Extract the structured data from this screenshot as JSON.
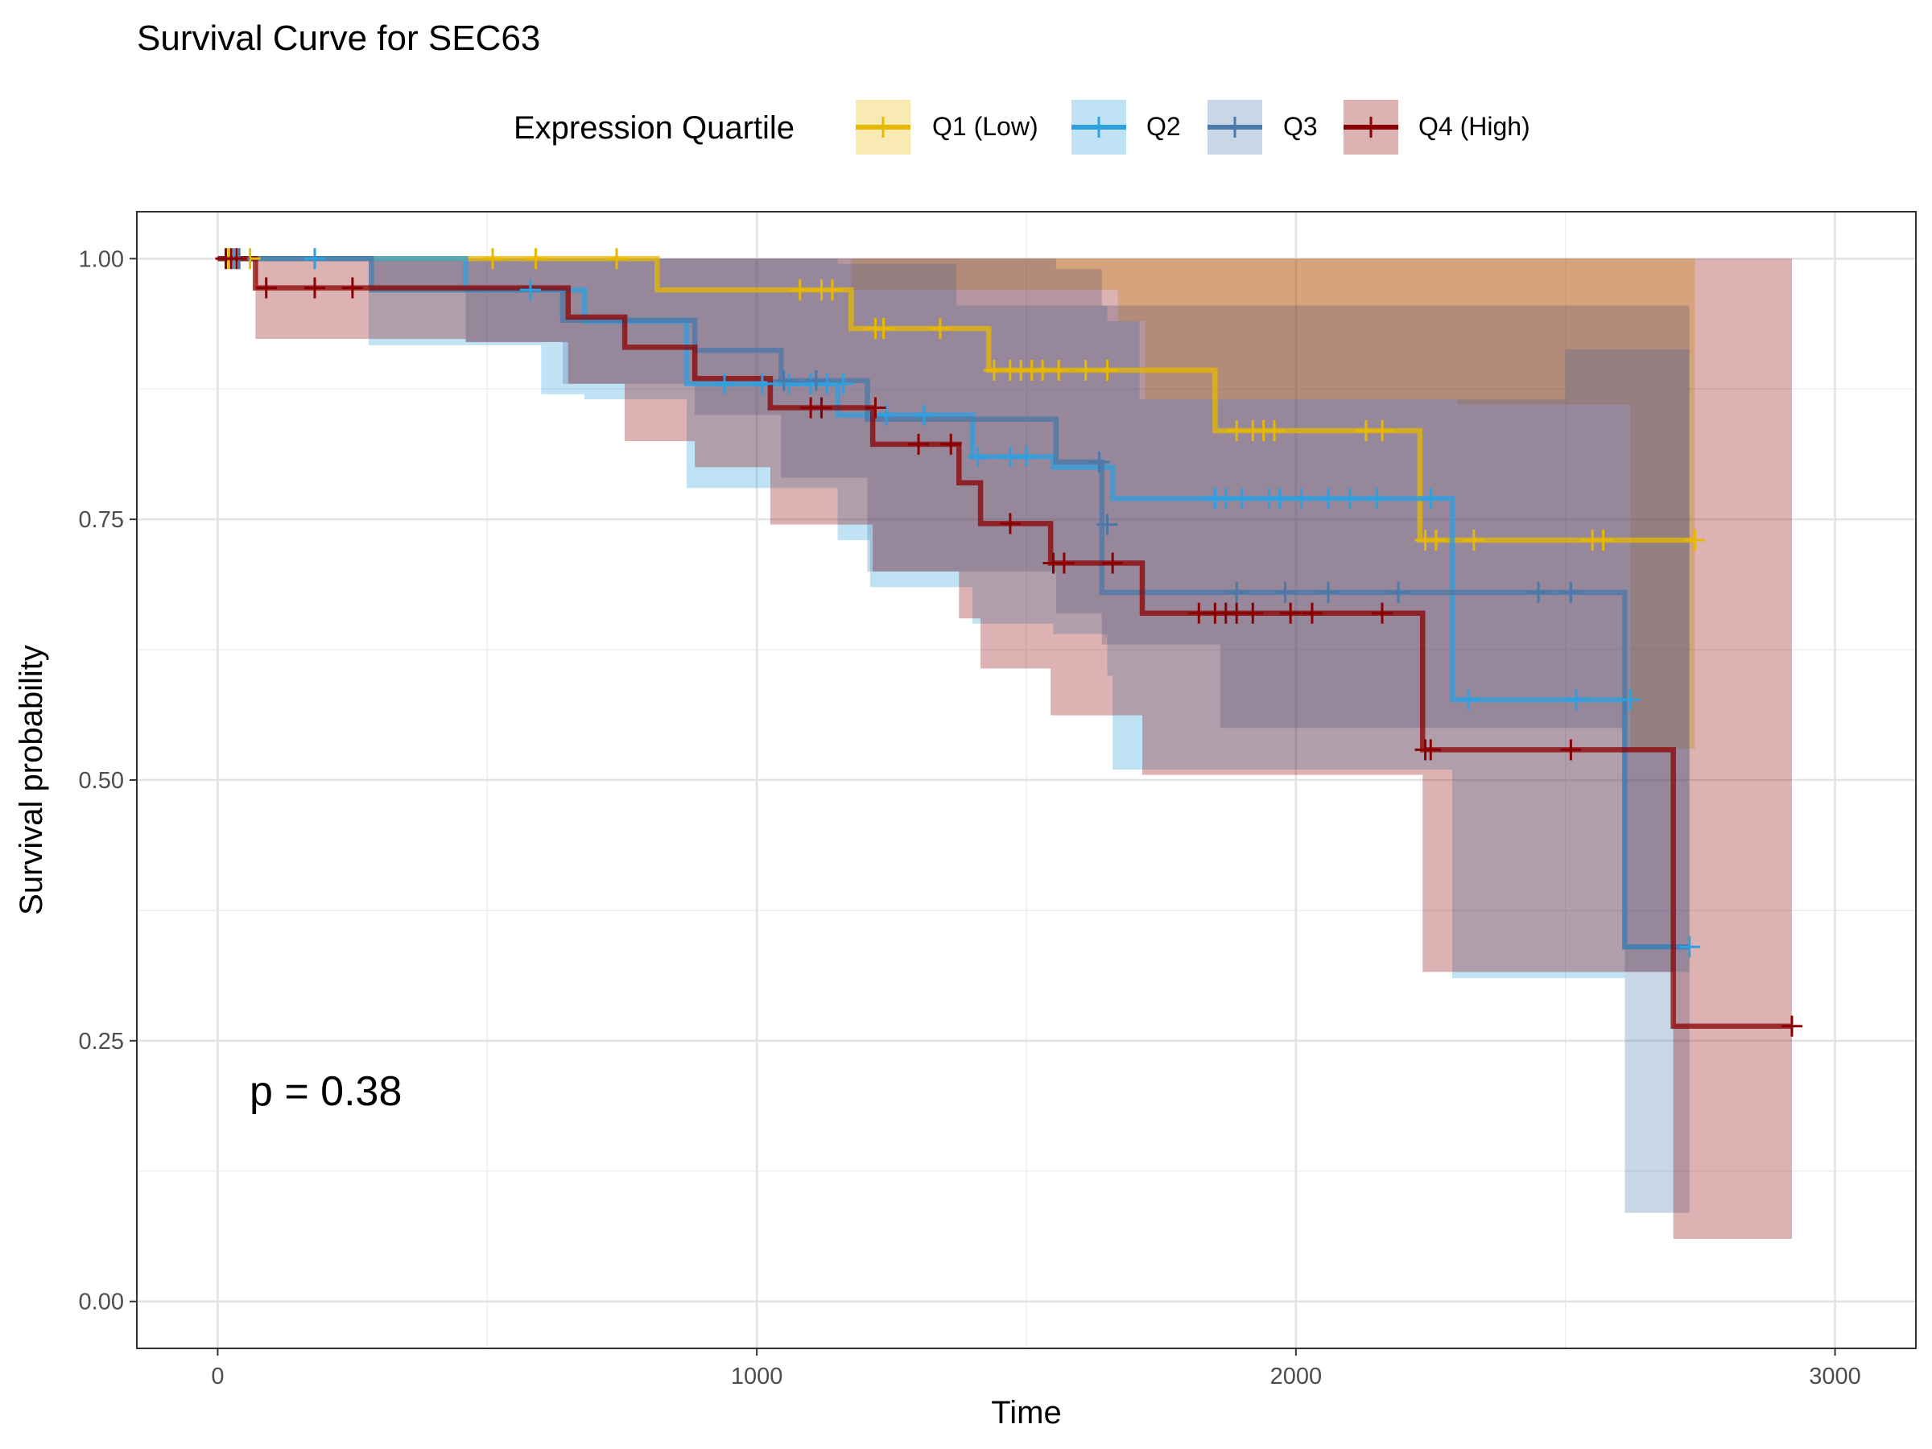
{
  "chart_data": {
    "type": "line",
    "title": "Survival Curve for SEC63",
    "xlabel": "Time",
    "ylabel": "Survival probability",
    "xlim": [
      -150,
      3150
    ],
    "ylim": [
      -0.045,
      1.045
    ],
    "x_ticks": [
      0,
      1000,
      2000,
      3000
    ],
    "y_ticks": [
      0.0,
      0.25,
      0.5,
      0.75,
      1.0
    ],
    "x_tick_labels": [
      "0",
      "1000",
      "2000",
      "3000"
    ],
    "y_tick_labels": [
      "0.00",
      "0.25",
      "0.50",
      "0.75",
      "1.00"
    ],
    "grid": true,
    "legend": {
      "title": "Expression Quartile",
      "position": "top"
    },
    "annotation": "p = 0.38",
    "series": [
      {
        "name": "Q1 (Low)",
        "color": "#E7B800",
        "steps": [
          [
            0,
            1.0
          ],
          [
            815,
            1.0
          ],
          [
            815,
            0.97
          ],
          [
            1175,
            0.97
          ],
          [
            1175,
            0.933
          ],
          [
            1430,
            0.933
          ],
          [
            1430,
            0.893
          ],
          [
            1850,
            0.893
          ],
          [
            1850,
            0.835
          ],
          [
            2230,
            0.835
          ],
          [
            2230,
            0.73
          ],
          [
            2740,
            0.73
          ]
        ],
        "ci": [
          [
            0,
            1.0,
            1.0
          ],
          [
            815,
            1.0,
            1.0
          ],
          [
            1175,
            1.0,
            0.97
          ],
          [
            1670,
            1.0,
            0.94
          ],
          [
            1720,
            1.0,
            0.865
          ],
          [
            1860,
            1.0,
            0.865
          ],
          [
            2300,
            1.0,
            0.86
          ],
          [
            2620,
            1.0,
            0.53
          ],
          [
            2700,
            1.0,
            0.53
          ],
          [
            2740,
            1.0,
            0.53
          ]
        ],
        "censor": [
          [
            20,
            1.0
          ],
          [
            60,
            1.0
          ],
          [
            510,
            1.0
          ],
          [
            590,
            1.0
          ],
          [
            740,
            1.0
          ],
          [
            1080,
            0.97
          ],
          [
            1120,
            0.97
          ],
          [
            1140,
            0.97
          ],
          [
            1220,
            0.933
          ],
          [
            1235,
            0.933
          ],
          [
            1340,
            0.933
          ],
          [
            1440,
            0.893
          ],
          [
            1470,
            0.893
          ],
          [
            1490,
            0.893
          ],
          [
            1510,
            0.893
          ],
          [
            1530,
            0.893
          ],
          [
            1560,
            0.893
          ],
          [
            1610,
            0.893
          ],
          [
            1650,
            0.893
          ],
          [
            1890,
            0.835
          ],
          [
            1920,
            0.835
          ],
          [
            1940,
            0.835
          ],
          [
            1960,
            0.835
          ],
          [
            2130,
            0.835
          ],
          [
            2160,
            0.835
          ],
          [
            2240,
            0.73
          ],
          [
            2260,
            0.73
          ],
          [
            2330,
            0.73
          ],
          [
            2550,
            0.73
          ],
          [
            2570,
            0.73
          ],
          [
            2740,
            0.73
          ]
        ]
      },
      {
        "name": "Q2",
        "color": "#2E9FDF",
        "steps": [
          [
            0,
            1.0
          ],
          [
            460,
            1.0
          ],
          [
            460,
            0.97
          ],
          [
            680,
            0.97
          ],
          [
            680,
            0.94
          ],
          [
            870,
            0.94
          ],
          [
            870,
            0.88
          ],
          [
            1150,
            0.88
          ],
          [
            1150,
            0.85
          ],
          [
            1400,
            0.85
          ],
          [
            1400,
            0.81
          ],
          [
            1550,
            0.81
          ],
          [
            1550,
            0.8
          ],
          [
            1660,
            0.8
          ],
          [
            1660,
            0.77
          ],
          [
            2290,
            0.77
          ],
          [
            2290,
            0.577
          ],
          [
            2610,
            0.577
          ],
          [
            2610,
            0.34
          ],
          [
            2730,
            0.34
          ]
        ],
        "ci": [
          [
            0,
            1.0,
            1.0
          ],
          [
            280,
            1.0,
            0.917
          ],
          [
            460,
            1.0,
            0.917
          ],
          [
            600,
            1.0,
            0.87
          ],
          [
            680,
            1.0,
            0.865
          ],
          [
            870,
            1.0,
            0.78
          ],
          [
            950,
            1.0,
            0.78
          ],
          [
            1150,
            0.995,
            0.73
          ],
          [
            1210,
            0.995,
            0.685
          ],
          [
            1370,
            0.955,
            0.685
          ],
          [
            1400,
            0.955,
            0.65
          ],
          [
            1550,
            0.955,
            0.64
          ],
          [
            1650,
            0.94,
            0.6
          ],
          [
            1660,
            0.94,
            0.51
          ],
          [
            1710,
            0.865,
            0.51
          ],
          [
            2290,
            0.865,
            0.31
          ],
          [
            2500,
            0.913,
            0.31
          ],
          [
            2610,
            0.913,
            0.316
          ],
          [
            2730,
            0.913,
            0.316
          ]
        ],
        "censor": [
          [
            30,
            1.0
          ],
          [
            180,
            1.0
          ],
          [
            580,
            0.97
          ],
          [
            940,
            0.88
          ],
          [
            1010,
            0.88
          ],
          [
            1060,
            0.88
          ],
          [
            1100,
            0.88
          ],
          [
            1130,
            0.88
          ],
          [
            1160,
            0.88
          ],
          [
            1240,
            0.85
          ],
          [
            1310,
            0.85
          ],
          [
            1410,
            0.81
          ],
          [
            1470,
            0.81
          ],
          [
            1500,
            0.81
          ],
          [
            1850,
            0.77
          ],
          [
            1870,
            0.77
          ],
          [
            1900,
            0.77
          ],
          [
            1950,
            0.77
          ],
          [
            1970,
            0.77
          ],
          [
            2010,
            0.77
          ],
          [
            2060,
            0.77
          ],
          [
            2100,
            0.77
          ],
          [
            2150,
            0.77
          ],
          [
            2250,
            0.77
          ],
          [
            2320,
            0.577
          ],
          [
            2520,
            0.577
          ],
          [
            2620,
            0.577
          ],
          [
            2730,
            0.34
          ]
        ]
      },
      {
        "name": "Q3",
        "color": "#4A78A8",
        "steps": [
          [
            0,
            1.0
          ],
          [
            285,
            1.0
          ],
          [
            285,
            0.97
          ],
          [
            640,
            0.97
          ],
          [
            640,
            0.941
          ],
          [
            885,
            0.941
          ],
          [
            885,
            0.912
          ],
          [
            1045,
            0.912
          ],
          [
            1045,
            0.883
          ],
          [
            1205,
            0.883
          ],
          [
            1205,
            0.846
          ],
          [
            1555,
            0.846
          ],
          [
            1555,
            0.805
          ],
          [
            1640,
            0.805
          ],
          [
            1640,
            0.68
          ],
          [
            2610,
            0.68
          ],
          [
            2610,
            0.34
          ],
          [
            2730,
            0.34
          ]
        ],
        "ci": [
          [
            0,
            1.0,
            1.0
          ],
          [
            285,
            1.0,
            0.97
          ],
          [
            460,
            1.0,
            0.92
          ],
          [
            640,
            1.0,
            0.88
          ],
          [
            885,
            1.0,
            0.85
          ],
          [
            1045,
            1.0,
            0.79
          ],
          [
            1205,
            1.0,
            0.7
          ],
          [
            1555,
            0.99,
            0.66
          ],
          [
            1640,
            0.955,
            0.63
          ],
          [
            1660,
            0.955,
            0.63
          ],
          [
            1860,
            0.955,
            0.55
          ],
          [
            2610,
            0.955,
            0.085
          ],
          [
            2730,
            0.955,
            0.085
          ]
        ],
        "censor": [
          [
            40,
            1.0
          ],
          [
            1050,
            0.883
          ],
          [
            1110,
            0.883
          ],
          [
            1635,
            0.805
          ],
          [
            1650,
            0.745
          ],
          [
            1890,
            0.68
          ],
          [
            1980,
            0.68
          ],
          [
            2060,
            0.68
          ],
          [
            2190,
            0.68
          ],
          [
            2450,
            0.68
          ],
          [
            2510,
            0.68
          ]
        ]
      },
      {
        "name": "Q4 (High)",
        "color": "#8B0000",
        "steps": [
          [
            0,
            1.0
          ],
          [
            70,
            1.0
          ],
          [
            70,
            0.972
          ],
          [
            650,
            0.972
          ],
          [
            650,
            0.944
          ],
          [
            755,
            0.944
          ],
          [
            755,
            0.915
          ],
          [
            885,
            0.915
          ],
          [
            885,
            0.885
          ],
          [
            1025,
            0.885
          ],
          [
            1025,
            0.857
          ],
          [
            1215,
            0.857
          ],
          [
            1215,
            0.822
          ],
          [
            1375,
            0.822
          ],
          [
            1375,
            0.785
          ],
          [
            1415,
            0.785
          ],
          [
            1415,
            0.746
          ],
          [
            1545,
            0.746
          ],
          [
            1545,
            0.708
          ],
          [
            1715,
            0.708
          ],
          [
            1715,
            0.66
          ],
          [
            2235,
            0.66
          ],
          [
            2235,
            0.529
          ],
          [
            2700,
            0.529
          ],
          [
            2700,
            0.264
          ],
          [
            2920,
            0.264
          ]
        ],
        "ci": [
          [
            0,
            1.0,
            1.0
          ],
          [
            70,
            1.0,
            0.923
          ],
          [
            280,
            1.0,
            0.923
          ],
          [
            460,
            1.0,
            0.92
          ],
          [
            650,
            1.0,
            0.88
          ],
          [
            755,
            1.0,
            0.825
          ],
          [
            885,
            1.0,
            0.8
          ],
          [
            1025,
            1.0,
            0.745
          ],
          [
            1215,
            1.0,
            0.7
          ],
          [
            1375,
            1.0,
            0.655
          ],
          [
            1415,
            1.0,
            0.607
          ],
          [
            1545,
            1.0,
            0.562
          ],
          [
            1715,
            1.0,
            0.505
          ],
          [
            2235,
            1.0,
            0.316
          ],
          [
            2700,
            1.0,
            0.06
          ],
          [
            2920,
            1.0,
            0.06
          ]
        ],
        "censor": [
          [
            15,
            1.0
          ],
          [
            25,
            1.0
          ],
          [
            35,
            1.0
          ],
          [
            90,
            0.972
          ],
          [
            180,
            0.972
          ],
          [
            250,
            0.972
          ],
          [
            1100,
            0.857
          ],
          [
            1120,
            0.857
          ],
          [
            1220,
            0.857
          ],
          [
            1300,
            0.822
          ],
          [
            1360,
            0.822
          ],
          [
            1470,
            0.746
          ],
          [
            1550,
            0.708
          ],
          [
            1570,
            0.708
          ],
          [
            1660,
            0.708
          ],
          [
            1820,
            0.66
          ],
          [
            1850,
            0.66
          ],
          [
            1870,
            0.66
          ],
          [
            1890,
            0.66
          ],
          [
            1920,
            0.66
          ],
          [
            1990,
            0.66
          ],
          [
            2030,
            0.66
          ],
          [
            2160,
            0.66
          ],
          [
            2240,
            0.529
          ],
          [
            2250,
            0.529
          ],
          [
            2510,
            0.529
          ],
          [
            2920,
            0.264
          ]
        ]
      }
    ]
  }
}
